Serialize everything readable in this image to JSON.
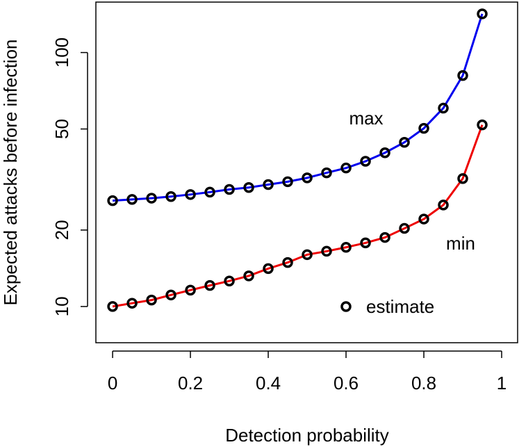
{
  "chart_data": {
    "type": "line",
    "x_label": "Detection probability",
    "y_label": "Expected attacks before infection",
    "x": [
      0,
      0.05,
      0.1,
      0.15,
      0.2,
      0.25,
      0.3,
      0.35,
      0.4,
      0.45,
      0.5,
      0.55,
      0.6,
      0.65,
      0.7,
      0.75,
      0.8,
      0.85,
      0.9,
      0.95
    ],
    "series": [
      {
        "name": "max",
        "color": "#0000ee",
        "values": [
          26.1,
          26.4,
          26.7,
          27.1,
          27.6,
          28.2,
          28.9,
          29.4,
          30.2,
          31.0,
          32.1,
          33.6,
          35.1,
          37.3,
          40.3,
          44.3,
          50.3,
          60.4,
          81.2,
          142
        ]
      },
      {
        "name": "min",
        "color": "#ee0000",
        "values": [
          10,
          10.3,
          10.6,
          11.1,
          11.6,
          12.1,
          12.6,
          13.2,
          14.1,
          14.9,
          16.0,
          16.5,
          17.1,
          17.8,
          18.7,
          20.3,
          22.1,
          25.1,
          31.9,
          51.9
        ]
      }
    ],
    "marker_color": "#000000",
    "legend": {
      "label": "estimate",
      "position": "bottom-right"
    },
    "xlim": [
      -0.043,
      1.041
    ],
    "ylim": [
      7.2,
      158
    ],
    "y_log": true,
    "xticks": [
      0,
      0.2,
      0.4,
      0.6,
      0.8,
      1
    ],
    "yticks": [
      10,
      20,
      50,
      100
    ]
  }
}
